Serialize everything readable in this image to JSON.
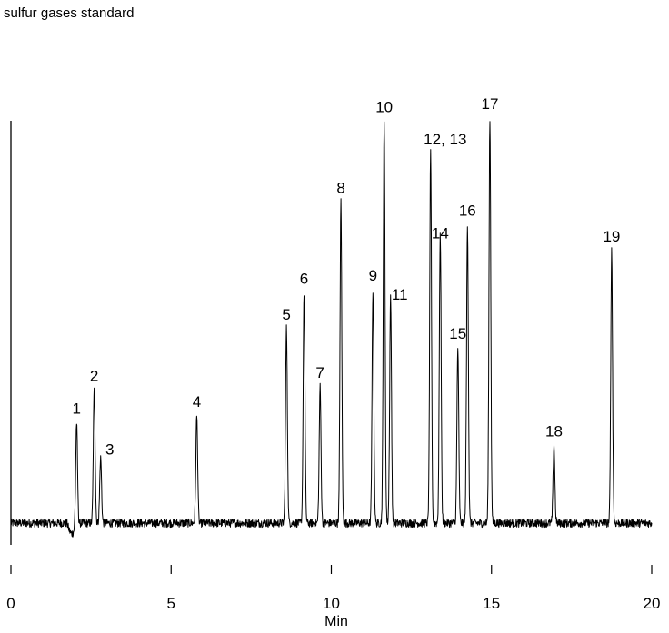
{
  "chart_data": {
    "type": "line",
    "title": "sulfur gases standard",
    "xlabel": "Min",
    "ylabel": "",
    "xlim": [
      0,
      20
    ],
    "ylim": [
      0,
      100
    ],
    "grid": false,
    "x_ticks": [
      "0",
      "5",
      "10",
      "15",
      "20"
    ],
    "colors": {
      "trace": "#000000",
      "axis": "#000000"
    },
    "peaks": [
      {
        "label": "1",
        "rt": 2.05,
        "height": 31
      },
      {
        "label": "2",
        "rt": 2.6,
        "height": 41
      },
      {
        "label": "3",
        "rt": 2.8,
        "height": 20
      },
      {
        "label": "4",
        "rt": 5.8,
        "height": 33
      },
      {
        "label": "5",
        "rt": 8.6,
        "height": 60
      },
      {
        "label": "6",
        "rt": 9.15,
        "height": 71
      },
      {
        "label": "7",
        "rt": 9.65,
        "height": 42
      },
      {
        "label": "8",
        "rt": 10.3,
        "height": 99
      },
      {
        "label": "9",
        "rt": 11.3,
        "height": 72
      },
      {
        "label": "10",
        "rt": 11.65,
        "height": 124
      },
      {
        "label": "11",
        "rt": 11.85,
        "height": 70
      },
      {
        "label": "12, 13",
        "rt": 13.1,
        "height": 114
      },
      {
        "label": "14",
        "rt": 13.4,
        "height": 89
      },
      {
        "label": "15",
        "rt": 13.95,
        "height": 54
      },
      {
        "label": "16",
        "rt": 14.25,
        "height": 92
      },
      {
        "label": "17",
        "rt": 14.95,
        "height": 125
      },
      {
        "label": "18",
        "rt": 16.95,
        "height": 24
      },
      {
        "label": "19",
        "rt": 18.75,
        "height": 84
      }
    ]
  }
}
